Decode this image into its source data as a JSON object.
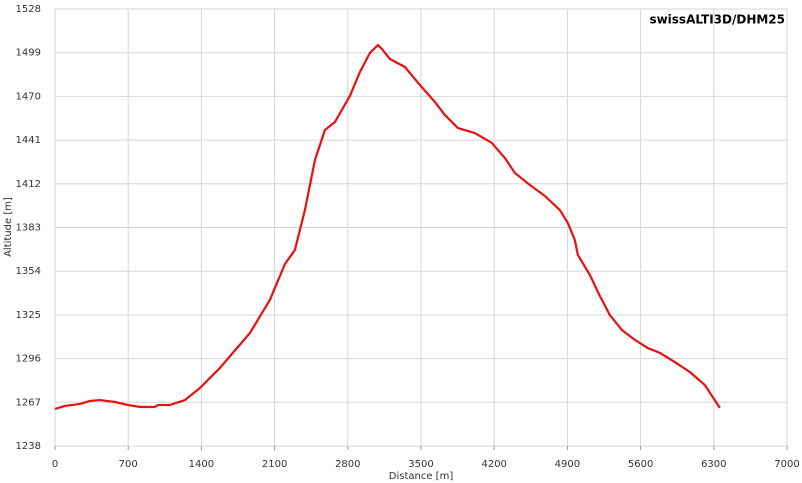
{
  "chart_data": {
    "type": "line",
    "title": "swissALTI3D/DHM25",
    "xlabel": "Distance [m]",
    "ylabel": "Altitude [m]",
    "x": [
      0,
      96,
      239,
      335,
      430,
      574,
      698,
      813,
      956,
      985,
      1099,
      1243,
      1386,
      1577,
      1864,
      2055,
      2199,
      2294,
      2390,
      2486,
      2581,
      2677,
      2820,
      2916,
      3011,
      3088,
      3126,
      3203,
      3346,
      3489,
      3633,
      3728,
      3853,
      4015,
      4178,
      4302,
      4398,
      4541,
      4685,
      4828,
      4904,
      4971,
      5000,
      5115,
      5210,
      5306,
      5421,
      5545,
      5669,
      5784,
      5927,
      6071,
      6214,
      6358
    ],
    "series": [
      {
        "name": "Altitude",
        "color": "#e81010",
        "values": [
          1262.6,
          1264.6,
          1265.9,
          1267.9,
          1268.5,
          1267.2,
          1265.2,
          1263.9,
          1263.9,
          1265.2,
          1265.2,
          1268.5,
          1276.5,
          1289.8,
          1313.0,
          1334.9,
          1358.8,
          1368.1,
          1394.6,
          1427.8,
          1447.7,
          1453.0,
          1470.3,
          1486.2,
          1498.8,
          1504.1,
          1501.5,
          1494.8,
          1489.5,
          1477.6,
          1466.3,
          1457.7,
          1449.0,
          1445.7,
          1439.1,
          1429.1,
          1419.2,
          1411.2,
          1403.9,
          1394.6,
          1386.0,
          1374.7,
          1364.8,
          1351.5,
          1337.6,
          1324.9,
          1315.0,
          1308.4,
          1303.0,
          1299.8,
          1293.7,
          1287.1,
          1278.5,
          1263.3
        ]
      }
    ],
    "xlim": [
      0,
      7000
    ],
    "xticks": [
      0,
      700,
      1400,
      2100,
      2800,
      3500,
      4200,
      4900,
      5600,
      6300,
      7000
    ],
    "ylim": [
      1238,
      1528
    ],
    "yticks": [
      1238,
      1267,
      1296,
      1325,
      1354,
      1383,
      1412,
      1441,
      1470,
      1499,
      1528
    ],
    "grid": true
  }
}
